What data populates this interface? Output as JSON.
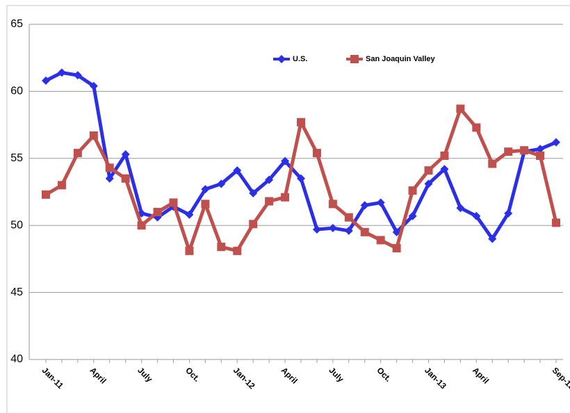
{
  "chart_data": {
    "type": "line",
    "categories": [
      "Jan-11",
      null,
      null,
      "April",
      null,
      null,
      "July",
      null,
      null,
      "Oct.",
      null,
      null,
      "Jan-12",
      null,
      null,
      "April",
      null,
      null,
      "July",
      null,
      null,
      "Oct.",
      null,
      null,
      "Jan-13",
      null,
      null,
      "April",
      null,
      null,
      null,
      null,
      "Sep-13"
    ],
    "series": [
      {
        "name": "U.S.",
        "color": "#2b2fe6",
        "marker": "diamond",
        "values": [
          60.8,
          61.4,
          61.2,
          60.4,
          53.5,
          55.3,
          50.9,
          50.6,
          51.4,
          50.8,
          52.7,
          53.1,
          54.1,
          52.4,
          53.4,
          54.8,
          53.5,
          49.7,
          49.8,
          49.6,
          51.5,
          51.7,
          49.5,
          50.7,
          53.1,
          54.2,
          51.3,
          50.7,
          49.0,
          50.9,
          55.5,
          55.7,
          56.2
        ]
      },
      {
        "name": "San Joaquin Valley",
        "color": "#c0504d",
        "marker": "square",
        "values": [
          52.3,
          53.0,
          55.4,
          56.7,
          54.3,
          53.5,
          50.0,
          51.0,
          51.7,
          48.1,
          51.6,
          48.4,
          48.1,
          50.1,
          51.8,
          52.1,
          57.7,
          55.4,
          51.6,
          50.6,
          49.5,
          48.9,
          48.3,
          52.6,
          54.1,
          55.2,
          58.7,
          57.3,
          54.6,
          55.5,
          55.6,
          55.2,
          50.2
        ]
      }
    ],
    "ylim": [
      40,
      65
    ],
    "yticks": [
      40,
      45,
      50,
      55,
      60,
      65
    ],
    "grid": true
  }
}
